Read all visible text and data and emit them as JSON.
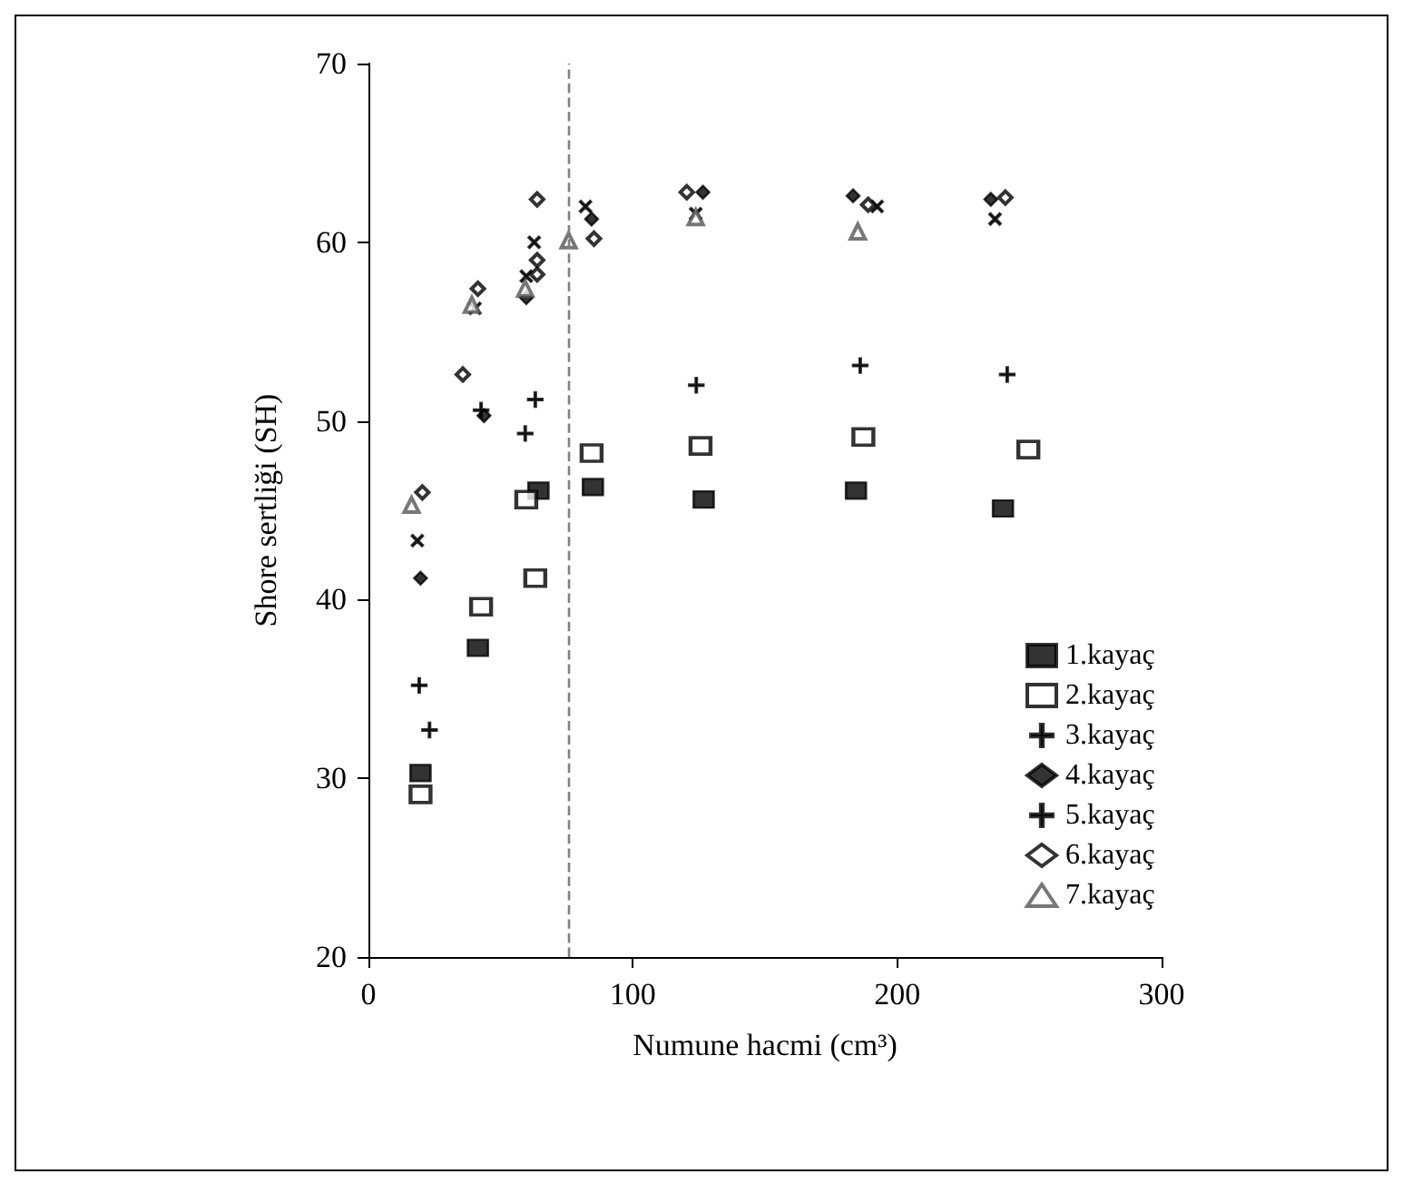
{
  "chart_data": {
    "type": "scatter",
    "xlabel": "Numune hacmi (cm³)",
    "ylabel": "Shore sertliği (SH)",
    "xlim": [
      0,
      300
    ],
    "xticks": [
      0,
      100,
      200,
      300
    ],
    "ylim": [
      20,
      70
    ],
    "yticks": [
      20,
      30,
      40,
      50,
      60,
      70
    ],
    "grid": false,
    "legend": "right",
    "ref_lines": [
      {
        "axis": "x",
        "value": 76,
        "color": "#808080",
        "line_style": "dashed"
      }
    ],
    "series": [
      {
        "name": "1.kayaç",
        "color": "#000000",
        "marker": "square",
        "x": [
          19.7,
          41.4,
          64.3,
          84.9,
          126.8,
          184.4,
          240
        ],
        "values": [
          30.3,
          37.3,
          46.1,
          46.3,
          45.6,
          46.1,
          45.1
        ]
      },
      {
        "name": "2.kayaç",
        "color": "#000000",
        "marker": "square",
        "x": [
          19.7,
          42.6,
          59.7,
          63.1,
          84.4,
          125.6,
          187.2,
          249.6
        ],
        "values": [
          29.1,
          39.6,
          45.6,
          41.2,
          48.2,
          48.6,
          49.1,
          48.4
        ]
      },
      {
        "name": "3.kayaç",
        "color": "#000000",
        "marker": "cross",
        "x": [
          19.2,
          23.1,
          42.6,
          59.3,
          63.1,
          124,
          186,
          241.6
        ],
        "values": [
          35.2,
          32.7,
          50.6,
          49.3,
          51.2,
          52,
          53.1,
          52.6
        ]
      },
      {
        "name": "4.kayaç",
        "color": "#000000",
        "marker": "diamond",
        "x": [
          19.7,
          43.7,
          59.7,
          84.4,
          126.5,
          183.3,
          235.4
        ],
        "values": [
          41.2,
          50.3,
          56.9,
          61.3,
          62.8,
          62.6,
          62.4
        ]
      },
      {
        "name": "5.kayaç",
        "color": "#000000",
        "marker": "cross",
        "x": [
          18.5,
          40.3,
          59.7,
          62.7,
          82.1,
          123.8,
          192.4,
          237
        ],
        "values": [
          43.3,
          56.3,
          58.1,
          60,
          62,
          61.6,
          62,
          61.3
        ]
      },
      {
        "name": "6.kayaç",
        "color": "#000000",
        "marker": "diamond",
        "x": [
          20.4,
          35.7,
          41.4,
          63.8,
          63.8,
          63.8,
          85.3,
          120.4,
          189,
          240.9
        ],
        "values": [
          46,
          52.6,
          57.4,
          62.4,
          59,
          58.2,
          60.2,
          62.8,
          62.1,
          62.5
        ]
      },
      {
        "name": "7.kayaç",
        "color": "#555555",
        "marker": "triangle",
        "x": [
          16.3,
          39.1,
          59.3,
          75.7,
          123.8,
          185.1
        ],
        "values": [
          45.3,
          56.5,
          57.4,
          60.1,
          61.4,
          60.6
        ]
      }
    ]
  }
}
